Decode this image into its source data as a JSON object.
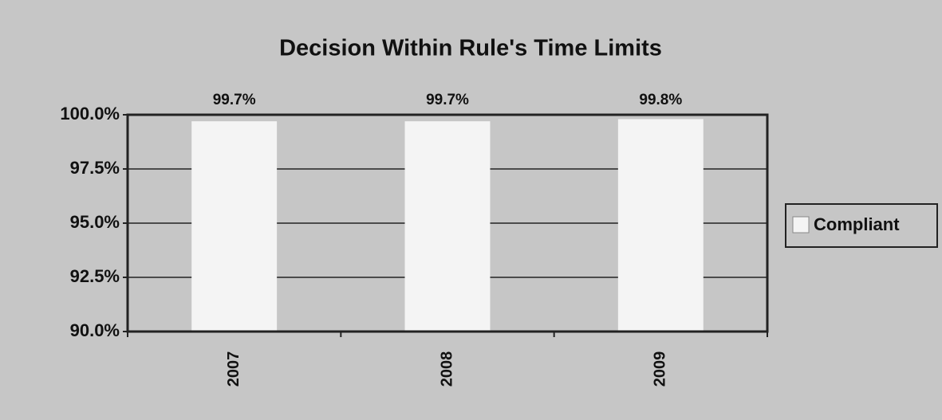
{
  "chart_data": {
    "type": "bar",
    "title": "Decision Within Rule's Time Limits",
    "categories": [
      "2007",
      "2008",
      "2009"
    ],
    "series": [
      {
        "name": "Compliant",
        "color": "#f4f4f4",
        "values": [
          99.7,
          99.7,
          99.8
        ],
        "value_labels": [
          "99.7%",
          "99.7%",
          "99.8%"
        ]
      }
    ],
    "ylim": [
      90,
      100
    ],
    "yticks": [
      {
        "value": 90,
        "label": "90.0%"
      },
      {
        "value": 92.5,
        "label": "92.5%"
      },
      {
        "value": 95,
        "label": "95.0%"
      },
      {
        "value": 97.5,
        "label": "97.5%"
      },
      {
        "value": 100,
        "label": "100.0%"
      }
    ],
    "grid": true,
    "legend": "right"
  }
}
